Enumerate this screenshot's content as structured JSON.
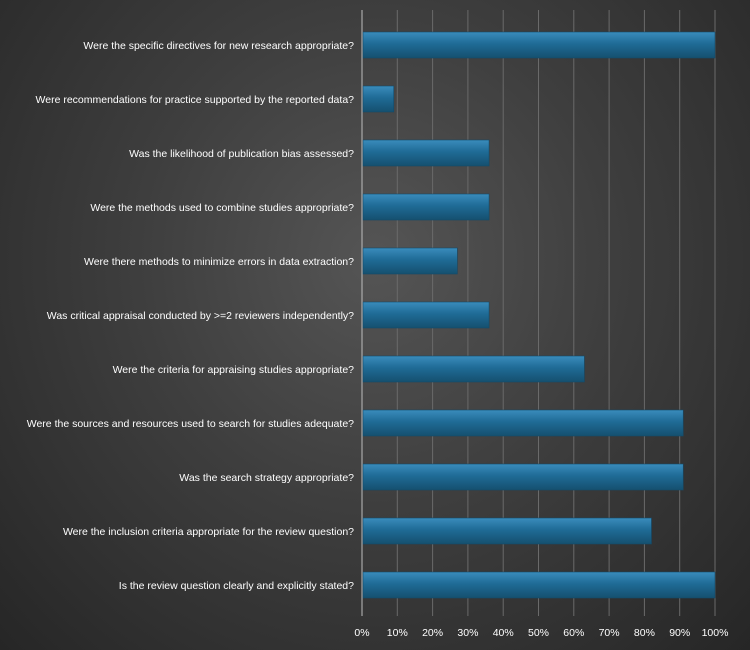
{
  "chart_data": {
    "type": "bar",
    "orientation": "horizontal",
    "categories": [
      "Were the specific directives for new research appropriate?",
      "Were recommendations for practice supported by the reported data?",
      "Was the likelihood of publication bias assessed?",
      "Were the methods used to combine studies appropriate?",
      "Were there methods to minimize errors in data extraction?",
      "Was critical appraisal conducted by >=2 reviewers independently?",
      "Were the criteria for appraising studies appropriate?",
      "Were the sources and resources used to search for studies adequate?",
      "Was the search strategy appropriate?",
      "Were the inclusion criteria appropriate for the review question?",
      "Is the review question clearly and explicitly stated?"
    ],
    "values": [
      100,
      9,
      36,
      36,
      27,
      36,
      63,
      91,
      91,
      82,
      100
    ],
    "xlim": [
      0,
      100
    ],
    "xticks": [
      "0%",
      "10%",
      "20%",
      "30%",
      "40%",
      "50%",
      "60%",
      "70%",
      "80%",
      "90%",
      "100%"
    ],
    "grid": true,
    "bar_color": "#1f6b96",
    "title": "",
    "xlabel": "",
    "ylabel": ""
  }
}
